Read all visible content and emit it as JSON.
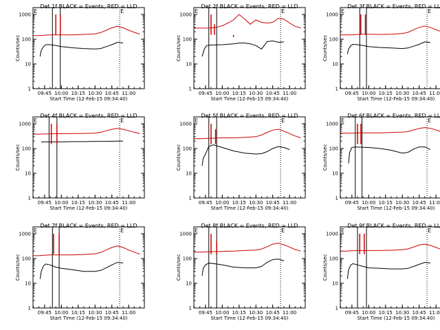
{
  "xlabel": "Start Time (12-Feb-15 09:34:40)",
  "ylabel": "Counts/sec",
  "x_tick_labels": [
    "09:45",
    "10:00",
    "10:15",
    "10:30",
    "10:45",
    "11:00"
  ],
  "y_tick_labels": [
    "1",
    "10",
    "100",
    "1000"
  ],
  "flag_labels": [
    "E",
    "E"
  ],
  "colors": {
    "events": "#000000",
    "lld": "#cc0000",
    "axis": "#000000"
  },
  "chart_data": [
    {
      "type": "line",
      "title": "Det 1f BLACK = Events, RED = LLD",
      "xlabel": "Start Time (12-Feb-15 09:34:40)",
      "ylabel": "Counts/sec",
      "xlim": [
        "09:34:40",
        "11:14"
      ],
      "ylim": [
        1,
        1000
      ],
      "yscale": "log",
      "markers": [
        "09:52",
        "09:59"
      ],
      "eclipse": [
        "09:34:40",
        "10:52"
      ],
      "spikes": [
        {
          "x": "09:55",
          "y": 1000
        },
        {
          "x": "09:59",
          "y": 1000
        }
      ],
      "series": [
        {
          "name": "Events",
          "x": [
            "09:41",
            "09:42",
            "09:44",
            "09:46",
            "09:50",
            "09:55",
            "10:00",
            "10:10",
            "10:20",
            "10:30",
            "10:35",
            "10:40",
            "10:45",
            "10:50",
            "10:55"
          ],
          "y": [
            20,
            35,
            50,
            60,
            60,
            55,
            50,
            45,
            42,
            40,
            42,
            50,
            60,
            75,
            70
          ]
        },
        {
          "name": "LLD",
          "x": [
            "09:34:40",
            "09:40",
            "09:45",
            "09:50",
            "09:55",
            "10:00",
            "10:10",
            "10:20",
            "10:30",
            "10:35",
            "10:40",
            "10:45",
            "10:50",
            "10:55",
            "11:00",
            "11:05",
            "11:10"
          ],
          "y": [
            140,
            140,
            145,
            150,
            150,
            150,
            150,
            155,
            165,
            185,
            230,
            290,
            330,
            290,
            230,
            190,
            160
          ]
        }
      ]
    },
    {
      "type": "line",
      "title": "Det 2f BLACK = Events, RED = LLD",
      "xlabel": "Start Time (12-Feb-15 09:34:40)",
      "ylabel": "Counts/sec",
      "xlim": [
        "09:34:40",
        "11:14"
      ],
      "ylim": [
        1,
        1000
      ],
      "yscale": "log",
      "markers": [
        "09:48",
        "09:55"
      ],
      "eclipse": [
        "09:34:40",
        "10:52"
      ],
      "spikes": [
        {
          "x": "09:50",
          "y": 1000
        },
        {
          "x": "09:53",
          "y": 400
        },
        {
          "x": "10:10",
          "y": 120
        }
      ],
      "series": [
        {
          "name": "Events",
          "x": [
            "09:42",
            "09:44",
            "09:46",
            "09:50",
            "10:00",
            "10:10",
            "10:15",
            "10:20",
            "10:25",
            "10:30",
            "10:35",
            "10:40",
            "10:45",
            "10:50",
            "10:55"
          ],
          "y": [
            20,
            40,
            55,
            58,
            60,
            65,
            70,
            70,
            65,
            55,
            40,
            80,
            85,
            75,
            78
          ]
        },
        {
          "name": "LLD",
          "x": [
            "09:34:40",
            "09:40",
            "09:45",
            "09:50",
            "09:55",
            "10:00",
            "10:05",
            "10:10",
            "10:15",
            "10:20",
            "10:25",
            "10:30",
            "10:35",
            "10:40",
            "10:45",
            "10:50",
            "10:55",
            "11:00",
            "11:05",
            "11:10"
          ],
          "y": [
            280,
            280,
            280,
            285,
            300,
            350,
            450,
            600,
            1000,
            650,
            400,
            600,
            480,
            450,
            480,
            700,
            650,
            450,
            330,
            290
          ]
        }
      ]
    },
    {
      "type": "line",
      "title": "Det 3f BLACK = Events, RED = LLD",
      "xlabel": "Start Time (12-Feb-15 09:34:40)",
      "ylabel": "Counts/sec",
      "xlim": [
        "09:34:40",
        "11:14"
      ],
      "ylim": [
        1,
        1000
      ],
      "yscale": "log",
      "markers": [
        "09:52",
        "09:58"
      ],
      "eclipse": [
        "09:34:40",
        "10:52"
      ],
      "spikes": [
        {
          "x": "09:53",
          "y": 1000
        },
        {
          "x": "09:57",
          "y": 1000
        }
      ],
      "series": [
        {
          "name": "Events",
          "x": [
            "09:41",
            "09:42",
            "09:44",
            "09:46",
            "09:50",
            "09:55",
            "10:00",
            "10:10",
            "10:20",
            "10:30",
            "10:35",
            "10:40",
            "10:45",
            "10:50",
            "10:55"
          ],
          "y": [
            25,
            40,
            55,
            62,
            60,
            55,
            50,
            46,
            44,
            42,
            44,
            52,
            62,
            78,
            74
          ]
        },
        {
          "name": "LLD",
          "x": [
            "09:34:40",
            "09:40",
            "09:45",
            "09:50",
            "09:55",
            "10:00",
            "10:10",
            "10:20",
            "10:30",
            "10:35",
            "10:40",
            "10:45",
            "10:50",
            "10:55",
            "11:00",
            "11:05",
            "11:10"
          ],
          "y": [
            150,
            150,
            150,
            155,
            160,
            160,
            155,
            160,
            170,
            190,
            240,
            300,
            340,
            300,
            240,
            200,
            170
          ]
        }
      ]
    },
    {
      "type": "line",
      "title": "Det 4f BLACK = Events, RED = LLD",
      "xlabel": "Start Time (12-Feb-15 09:34:40)",
      "ylabel": "Counts/sec",
      "xlim": [
        "09:34:40",
        "11:14"
      ],
      "ylim": [
        1,
        1000
      ],
      "yscale": "log",
      "markers": [
        "09:49",
        "09:56"
      ],
      "eclipse": [
        "09:34:40",
        "10:52"
      ],
      "spikes": [
        {
          "x": "09:51",
          "y": 1000
        },
        {
          "x": "09:56",
          "y": 1000
        }
      ],
      "series": [
        {
          "name": "Events",
          "x": [
            "09:42",
            "09:44",
            "09:50",
            "10:00",
            "10:10",
            "10:20",
            "10:30",
            "10:40",
            "10:50",
            "10:55"
          ],
          "y": [
            180,
            185,
            185,
            185,
            190,
            190,
            195,
            195,
            200,
            200
          ]
        },
        {
          "name": "LLD",
          "x": [
            "09:34:40",
            "09:40",
            "09:45",
            "09:50",
            "09:55",
            "10:00",
            "10:10",
            "10:20",
            "10:30",
            "10:35",
            "10:40",
            "10:45",
            "10:50",
            "10:55",
            "11:00",
            "11:05",
            "11:10"
          ],
          "y": [
            380,
            380,
            385,
            390,
            395,
            395,
            400,
            405,
            420,
            450,
            520,
            600,
            650,
            600,
            520,
            450,
            400
          ]
        }
      ]
    },
    {
      "type": "line",
      "title": "Det 5f BLACK = Events, RED = LLD",
      "xlabel": "Start Time (12-Feb-15 09:34:40)",
      "ylabel": "Counts/sec",
      "xlim": [
        "09:34:40",
        "11:14"
      ],
      "ylim": [
        1,
        1000
      ],
      "yscale": "log",
      "markers": [
        "09:48",
        "09:55"
      ],
      "eclipse": [
        "09:34:40",
        "10:52"
      ],
      "spikes": [
        {
          "x": "09:50",
          "y": 1000
        },
        {
          "x": "09:54",
          "y": 600
        }
      ],
      "series": [
        {
          "name": "Events",
          "x": [
            "09:42",
            "09:43",
            "09:45",
            "09:48",
            "09:52",
            "10:00",
            "10:10",
            "10:20",
            "10:30",
            "10:35",
            "10:40",
            "10:45",
            "10:50",
            "10:55",
            "11:00"
          ],
          "y": [
            20,
            40,
            60,
            120,
            140,
            110,
            80,
            65,
            60,
            62,
            75,
            100,
            120,
            110,
            90
          ]
        },
        {
          "name": "LLD",
          "x": [
            "09:34:40",
            "09:40",
            "09:45",
            "09:50",
            "09:55",
            "10:00",
            "10:10",
            "10:20",
            "10:30",
            "10:35",
            "10:40",
            "10:45",
            "10:50",
            "10:55",
            "11:00",
            "11:05",
            "11:10"
          ],
          "y": [
            250,
            250,
            255,
            260,
            265,
            270,
            270,
            280,
            300,
            350,
            450,
            550,
            600,
            500,
            400,
            320,
            270
          ]
        }
      ]
    },
    {
      "type": "line",
      "title": "Det 6f BLACK = Events, RED = LLD",
      "xlabel": "Start Time (12-Feb-15 09:34:40)",
      "ylabel": "Counts/sec",
      "xlim": [
        "09:34:40",
        "11:14"
      ],
      "ylim": [
        1,
        1000
      ],
      "yscale": "log",
      "markers": [
        "09:48",
        "09:54"
      ],
      "eclipse": [
        "09:34:40",
        "10:52"
      ],
      "spikes": [
        {
          "x": "09:50",
          "y": 1000
        },
        {
          "x": "09:53",
          "y": 1000
        }
      ],
      "series": [
        {
          "name": "Events",
          "x": [
            "09:42",
            "09:43",
            "09:45",
            "09:48",
            "10:00",
            "10:10",
            "10:20",
            "10:30",
            "10:35",
            "10:40",
            "10:45",
            "10:50",
            "10:55"
          ],
          "y": [
            25,
            70,
            110,
            115,
            110,
            100,
            85,
            65,
            70,
            95,
            115,
            115,
            90
          ]
        },
        {
          "name": "LLD",
          "x": [
            "09:34:40",
            "09:40",
            "09:45",
            "09:50",
            "09:55",
            "10:00",
            "10:10",
            "10:20",
            "10:30",
            "10:35",
            "10:40",
            "10:45",
            "10:50",
            "10:55",
            "11:00",
            "11:05",
            "11:10"
          ],
          "y": [
            420,
            420,
            420,
            430,
            430,
            430,
            430,
            440,
            460,
            480,
            560,
            650,
            700,
            650,
            560,
            480,
            430
          ]
        }
      ]
    },
    {
      "type": "line",
      "title": "Det 7f BLACK = Events, RED = LLD",
      "xlabel": "Start Time (12-Feb-15 09:34:40)",
      "ylabel": "Counts/sec",
      "xlim": [
        "09:34:40",
        "11:14"
      ],
      "ylim": [
        1,
        1000
      ],
      "yscale": "log",
      "markers": [
        "09:52",
        "09:58"
      ],
      "eclipse": [
        "09:34:40",
        "10:52"
      ],
      "spikes": [
        {
          "x": "09:53",
          "y": 1000
        },
        {
          "x": "09:58",
          "y": 1000
        }
      ],
      "series": [
        {
          "name": "Events",
          "x": [
            "09:41",
            "09:42",
            "09:44",
            "09:46",
            "09:50",
            "09:55",
            "10:00",
            "10:10",
            "10:20",
            "10:30",
            "10:35",
            "10:40",
            "10:45",
            "10:50",
            "10:55"
          ],
          "y": [
            15,
            30,
            50,
            60,
            55,
            45,
            40,
            35,
            30,
            30,
            33,
            42,
            55,
            70,
            66
          ]
        },
        {
          "name": "LLD",
          "x": [
            "09:34:40",
            "09:40",
            "09:45",
            "09:50",
            "09:55",
            "10:00",
            "10:10",
            "10:20",
            "10:30",
            "10:35",
            "10:40",
            "10:45",
            "10:50",
            "10:55",
            "11:00",
            "11:05",
            "11:10"
          ],
          "y": [
            130,
            130,
            135,
            140,
            140,
            140,
            140,
            145,
            155,
            175,
            220,
            280,
            320,
            280,
            220,
            180,
            150
          ]
        }
      ]
    },
    {
      "type": "line",
      "title": "Det 8f BLACK = Events, RED = LLD",
      "xlabel": "Start Time (12-Feb-15 09:34:40)",
      "ylabel": "Counts/sec",
      "xlim": [
        "09:34:40",
        "11:14"
      ],
      "ylim": [
        1,
        1000
      ],
      "yscale": "log",
      "markers": [
        "09:48",
        "09:55"
      ],
      "eclipse": [
        "09:34:40",
        "10:52"
      ],
      "spikes": [
        {
          "x": "09:50",
          "y": 1000
        },
        {
          "x": "09:55",
          "y": 500
        }
      ],
      "series": [
        {
          "name": "Events",
          "x": [
            "09:42",
            "09:43",
            "09:45",
            "09:48",
            "09:55",
            "10:00",
            "10:10",
            "10:20",
            "10:30",
            "10:35",
            "10:40",
            "10:45",
            "10:50",
            "10:55"
          ],
          "y": [
            20,
            40,
            55,
            65,
            60,
            55,
            45,
            42,
            42,
            48,
            70,
            90,
            95,
            80
          ]
        },
        {
          "name": "LLD",
          "x": [
            "09:34:40",
            "09:40",
            "09:45",
            "09:50",
            "09:55",
            "10:00",
            "10:10",
            "10:20",
            "10:30",
            "10:35",
            "10:40",
            "10:45",
            "10:50",
            "10:55",
            "11:00",
            "11:05",
            "11:10"
          ],
          "y": [
            180,
            180,
            185,
            190,
            190,
            195,
            200,
            210,
            220,
            240,
            300,
            380,
            420,
            360,
            290,
            230,
            200
          ]
        }
      ]
    },
    {
      "type": "line",
      "title": "Det 9f BLACK = Events, RED = LLD",
      "xlabel": "Start Time (12-Feb-15 09:34:40)",
      "ylabel": "Counts/sec",
      "xlim": [
        "09:34:40",
        "11:14"
      ],
      "ylim": [
        1,
        1000
      ],
      "yscale": "log",
      "markers": [
        "09:50",
        "09:58"
      ],
      "eclipse": [
        "09:34:40",
        "10:52"
      ],
      "spikes": [
        {
          "x": "09:52",
          "y": 1000
        },
        {
          "x": "09:56",
          "y": 1000
        }
      ],
      "series": [
        {
          "name": "Events",
          "x": [
            "09:41",
            "09:42",
            "09:44",
            "09:46",
            "09:50",
            "09:55",
            "10:00",
            "10:10",
            "10:20",
            "10:30",
            "10:35",
            "10:40",
            "10:45",
            "10:50",
            "10:55"
          ],
          "y": [
            15,
            35,
            55,
            62,
            55,
            48,
            42,
            40,
            38,
            38,
            40,
            48,
            58,
            70,
            66
          ]
        },
        {
          "name": "LLD",
          "x": [
            "09:34:40",
            "09:40",
            "09:45",
            "09:50",
            "09:55",
            "10:00",
            "10:10",
            "10:20",
            "10:30",
            "10:35",
            "10:40",
            "10:45",
            "10:50",
            "10:55",
            "11:00",
            "11:05",
            "11:10"
          ],
          "y": [
            200,
            200,
            205,
            210,
            210,
            210,
            210,
            215,
            225,
            245,
            290,
            350,
            380,
            340,
            280,
            230,
            205
          ]
        }
      ]
    }
  ]
}
